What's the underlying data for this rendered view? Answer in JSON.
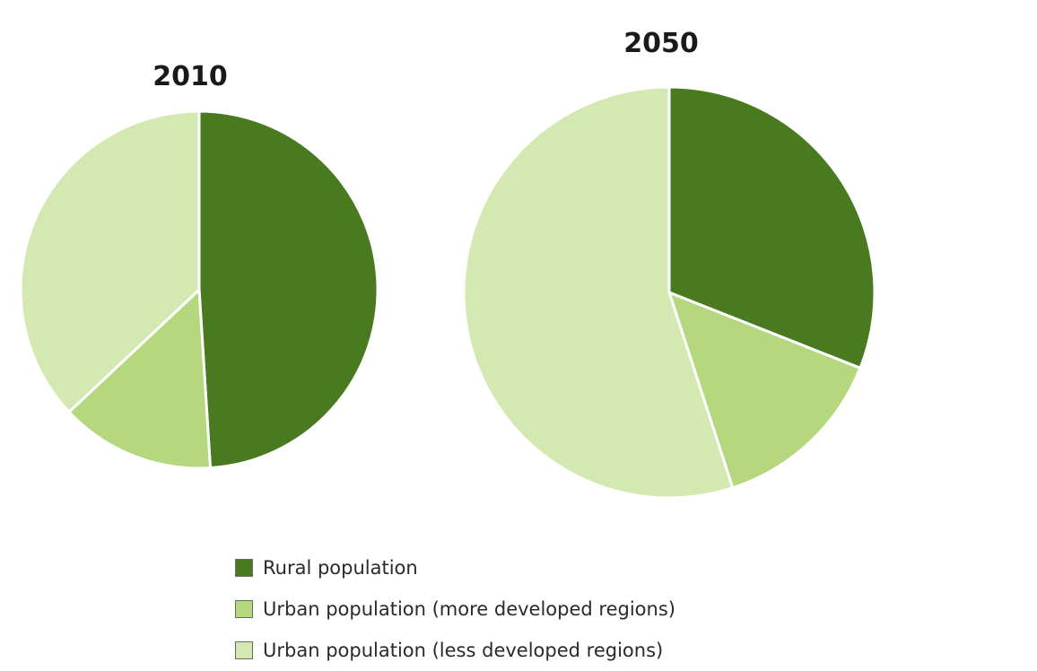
{
  "chart_data": [
    {
      "type": "pie",
      "title": "2010",
      "start_angle_deg": 0,
      "direction": "clockwise",
      "slices": [
        {
          "label": "Rural population",
          "value": 49
        },
        {
          "label": "Urban population (more developed regions)",
          "value": 14
        },
        {
          "label": "Urban population (less developed regions)",
          "value": 37
        }
      ]
    },
    {
      "type": "pie",
      "title": "2050",
      "start_angle_deg": 0,
      "direction": "clockwise",
      "slices": [
        {
          "label": "Rural population",
          "value": 31
        },
        {
          "label": "Urban population (more developed regions)",
          "value": 14
        },
        {
          "label": "Urban population (less developed regions)",
          "value": 55
        }
      ]
    }
  ],
  "legend": {
    "items": [
      {
        "label": "Rural population",
        "color": "#4a7a1f"
      },
      {
        "label": "Urban population (more developed regions)",
        "color": "#b5d77e"
      },
      {
        "label": "Urban population (less developed regions)",
        "color": "#d4e8b2"
      }
    ]
  }
}
